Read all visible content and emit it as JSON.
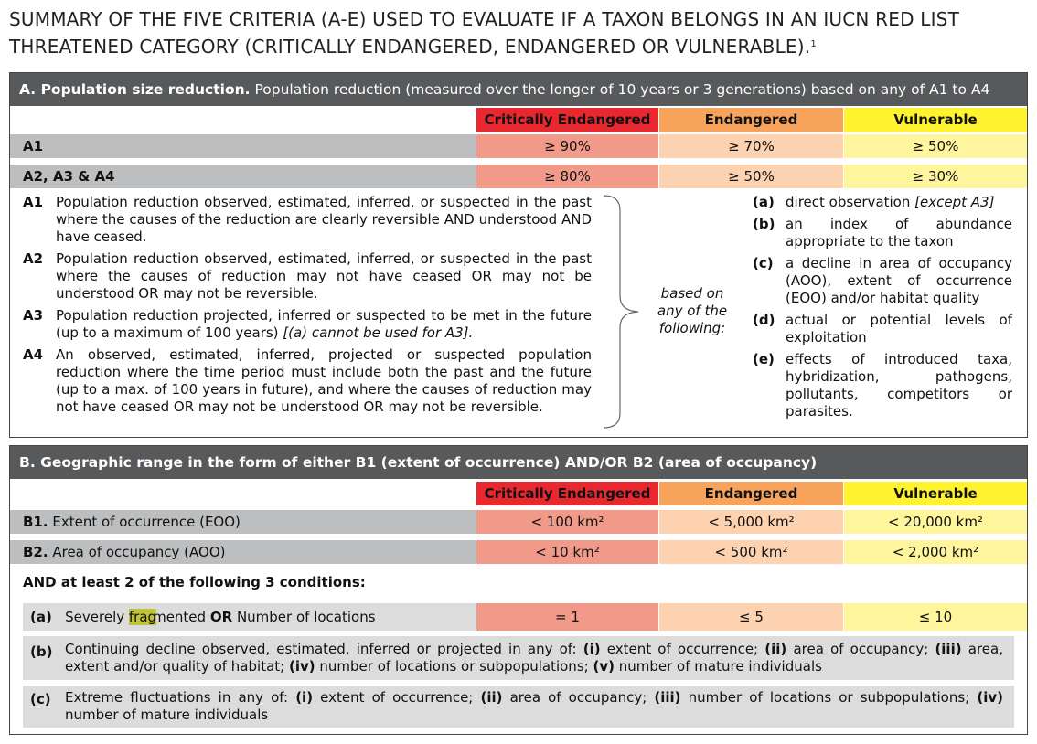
{
  "title": "SUMMARY OF THE FIVE CRITERIA (A-E) USED TO EVALUATE IF A TAXON BELONGS IN AN IUCN RED LIST THREATENED CATEGORY (CRITICALLY ENDANGERED, ENDANGERED OR VULNERABLE).",
  "title_footnote": "1",
  "categories": {
    "ce": "Critically Endangered",
    "en": "Endangered",
    "vu": "Vulnerable"
  },
  "colors": {
    "header_bg": "#58595b",
    "ce": "#e8282e",
    "en": "#f7a35c",
    "vu": "#fff22e"
  },
  "sectionA": {
    "header_bold": "A. Population size reduction.",
    "header_rest": "Population reduction (measured over the longer of 10 years or 3 generations) based on any of A1 to A4",
    "rows": [
      {
        "label": "A1",
        "ce": "≥ 90%",
        "en": "≥ 70%",
        "vu": "≥ 50%"
      },
      {
        "label": "A2, A3 & A4",
        "ce": "≥ 80%",
        "en": "≥ 50%",
        "vu": "≥ 30%"
      }
    ],
    "a1_tag": "A1",
    "a1_text": "Population reduction observed, estimated, inferred, or suspected in the past where the causes of the reduction are clearly reversible AND understood AND have ceased.",
    "a2_tag": "A2",
    "a2_text": "Population reduction observed, estimated, inferred, or suspected in the past where the causes of reduction may not have ceased OR may not be understood OR may not be reversible.",
    "a3_tag": "A3",
    "a3_text": "Population reduction projected, inferred or suspected to be met in the future (up to a maximum of 100 years)",
    "a3_italic": "[(a) cannot be used for A3].",
    "a4_tag": "A4",
    "a4_text": "An observed, estimated, inferred, projected or suspected population reduction where the time period must include both the past and the future (up to a max. of 100 years in future), and where the causes of reduction may not have ceased OR may not be understood OR may not be reversible.",
    "based_on": "based on any of the following:",
    "ra_tag": "(a)",
    "ra_text": "direct observation",
    "ra_italic": "[except A3]",
    "rb_tag": "(b)",
    "rb_text": "an index of abundance appropriate to the taxon",
    "rc_tag": "(c)",
    "rc_text": "a decline in area of occupancy (AOO), extent of occurrence (EOO) and/or habitat quality",
    "rd_tag": "(d)",
    "rd_text": "actual or potential levels of exploitation",
    "re_tag": "(e)",
    "re_text": "effects of introduced taxa, hybridization, pathogens, pollutants, competitors or parasites."
  },
  "sectionB": {
    "header": "B. Geographic range in the form of either B1 (extent of occurrence) AND/OR B2 (area of occupancy)",
    "b1_bold": "B1.",
    "b1_label": "Extent of occurrence (EOO)",
    "b1_ce": "< 100 km²",
    "b1_en": "< 5,000 km²",
    "b1_vu": "< 20,000 km²",
    "b2_bold": "B2.",
    "b2_label": "Area of occupancy (AOO)",
    "b2_ce": "< 10 km²",
    "b2_en": "< 500 km²",
    "b2_vu": "< 2,000 km²",
    "conditions_title": "AND at least 2 of the following 3 conditions:",
    "ca_tag": "(a)",
    "ca_pre": "Severely",
    "ca_hl": "frag",
    "ca_post": "mented",
    "ca_or": "OR",
    "ca_tail": "Number of locations",
    "ca_ce": "= 1",
    "ca_en": "≤ 5",
    "ca_vu": "≤ 10",
    "cb_tag": "(b)",
    "cb_t1": "Continuing decline observed, estimated, inferred or projected in any of:",
    "cb_i": "(i)",
    "cb_t2": "extent of occurrence;",
    "cb_ii": "(ii)",
    "cb_t3": "area of occupancy;",
    "cb_iii": "(iii)",
    "cb_t4": "area, extent and/or quality of habitat;",
    "cb_iv": "(iv)",
    "cb_t5": "number of locations or subpopulations;",
    "cb_v": "(v)",
    "cb_t6": "number of mature individuals",
    "cc_tag": "(c)",
    "cc_t1": "Extreme fluctuations in any of:",
    "cc_i": "(i)",
    "cc_t2": "extent of occurrence;",
    "cc_ii": "(ii)",
    "cc_t3": "area of occupancy;",
    "cc_iii": "(iii)",
    "cc_t4": "number of locations or subpopulations;",
    "cc_iv": "(iv)",
    "cc_t5": "number of mature individuals"
  }
}
